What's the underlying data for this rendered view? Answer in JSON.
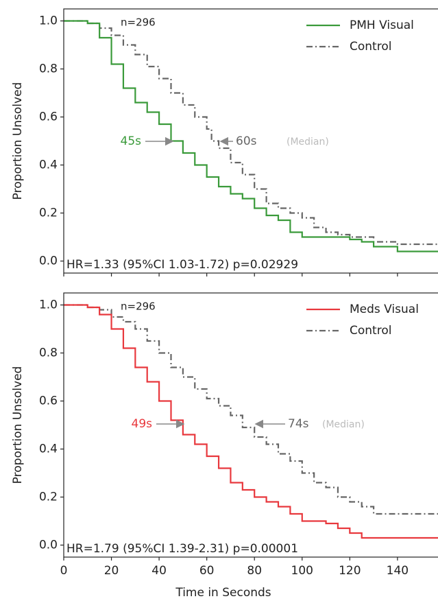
{
  "chart_data": [
    {
      "type": "step",
      "legend": "upper right",
      "ylabel": "Proportion Unsolved",
      "xlim": [
        0,
        157
      ],
      "ylim": [
        -0.05,
        1.05
      ],
      "xticks": [
        0,
        20,
        40,
        60,
        80,
        100,
        120,
        140
      ],
      "xticklabels": false,
      "yticks": [
        {
          "value": 0,
          "label": "0.0"
        },
        {
          "value": 0.2,
          "label": "0.2"
        },
        {
          "value": 0.4,
          "label": "0.4"
        },
        {
          "value": 0.6,
          "label": "0.6"
        },
        {
          "value": 0.8,
          "label": "0.8"
        },
        {
          "value": 1,
          "label": "1.0"
        }
      ],
      "annotations": [
        "n=296",
        "45s",
        "60s",
        "(Median)",
        "HR=1.33 (95%CI 1.03-1.72) p=0.02929"
      ],
      "series": [
        {
          "name": "PMH Visual",
          "color": "#3a9a3a",
          "dash": "solid",
          "x": [
            0,
            10,
            15,
            20,
            25,
            30,
            35,
            40,
            45,
            50,
            55,
            60,
            65,
            70,
            75,
            80,
            85,
            90,
            95,
            100,
            120,
            125,
            130,
            140,
            157
          ],
          "values": [
            1,
            0.99,
            0.93,
            0.82,
            0.72,
            0.66,
            0.62,
            0.57,
            0.5,
            0.45,
            0.4,
            0.35,
            0.31,
            0.28,
            0.26,
            0.22,
            0.19,
            0.17,
            0.12,
            0.1,
            0.09,
            0.08,
            0.06,
            0.04,
            0.04
          ]
        },
        {
          "name": "Control",
          "color": "#666666",
          "dash": "dashdot",
          "x": [
            0,
            10,
            15,
            20,
            25,
            30,
            35,
            40,
            45,
            50,
            55,
            60,
            62,
            65,
            70,
            75,
            80,
            85,
            90,
            95,
            100,
            105,
            110,
            115,
            120,
            130,
            140,
            157
          ],
          "values": [
            1,
            0.99,
            0.97,
            0.94,
            0.9,
            0.86,
            0.81,
            0.76,
            0.7,
            0.65,
            0.6,
            0.55,
            0.5,
            0.47,
            0.41,
            0.36,
            0.3,
            0.24,
            0.22,
            0.2,
            0.18,
            0.14,
            0.12,
            0.11,
            0.1,
            0.08,
            0.07,
            0.065
          ]
        }
      ]
    },
    {
      "type": "step",
      "legend": "upper right",
      "ylabel": "Proportion Unsolved",
      "xlabel": "Time in Seconds",
      "xlim": [
        0,
        157
      ],
      "ylim": [
        -0.05,
        1.05
      ],
      "xticks": [
        0,
        20,
        40,
        60,
        80,
        100,
        120,
        140
      ],
      "xticklabels": true,
      "yticks": [
        {
          "value": 0,
          "label": "0.0"
        },
        {
          "value": 0.2,
          "label": "0.2"
        },
        {
          "value": 0.4,
          "label": "0.4"
        },
        {
          "value": 0.6,
          "label": "0.6"
        },
        {
          "value": 0.8,
          "label": "0.8"
        },
        {
          "value": 1,
          "label": "1.0"
        }
      ],
      "annotations": [
        "n=296",
        "49s",
        "74s",
        "(Median)",
        "HR=1.79 (95%CI 1.39-2.31) p=0.00001"
      ],
      "series": [
        {
          "name": "Meds Visual",
          "color": "#e8383d",
          "dash": "solid",
          "x": [
            0,
            10,
            15,
            20,
            25,
            30,
            35,
            40,
            45,
            50,
            55,
            60,
            65,
            70,
            75,
            80,
            85,
            90,
            95,
            100,
            110,
            115,
            120,
            125,
            157
          ],
          "values": [
            1,
            0.99,
            0.96,
            0.9,
            0.82,
            0.74,
            0.68,
            0.6,
            0.52,
            0.46,
            0.42,
            0.37,
            0.32,
            0.26,
            0.23,
            0.2,
            0.18,
            0.16,
            0.13,
            0.1,
            0.09,
            0.07,
            0.05,
            0.03,
            0.03
          ]
        },
        {
          "name": "Control",
          "color": "#666666",
          "dash": "dashdot",
          "x": [
            0,
            10,
            15,
            20,
            25,
            30,
            35,
            40,
            45,
            50,
            55,
            60,
            65,
            70,
            75,
            80,
            85,
            90,
            95,
            100,
            105,
            110,
            115,
            120,
            125,
            130,
            140,
            157
          ],
          "values": [
            1,
            0.99,
            0.98,
            0.95,
            0.93,
            0.9,
            0.85,
            0.8,
            0.74,
            0.7,
            0.65,
            0.61,
            0.58,
            0.54,
            0.49,
            0.45,
            0.42,
            0.38,
            0.35,
            0.3,
            0.26,
            0.24,
            0.2,
            0.18,
            0.16,
            0.13,
            0.13,
            0.13
          ]
        }
      ]
    }
  ]
}
